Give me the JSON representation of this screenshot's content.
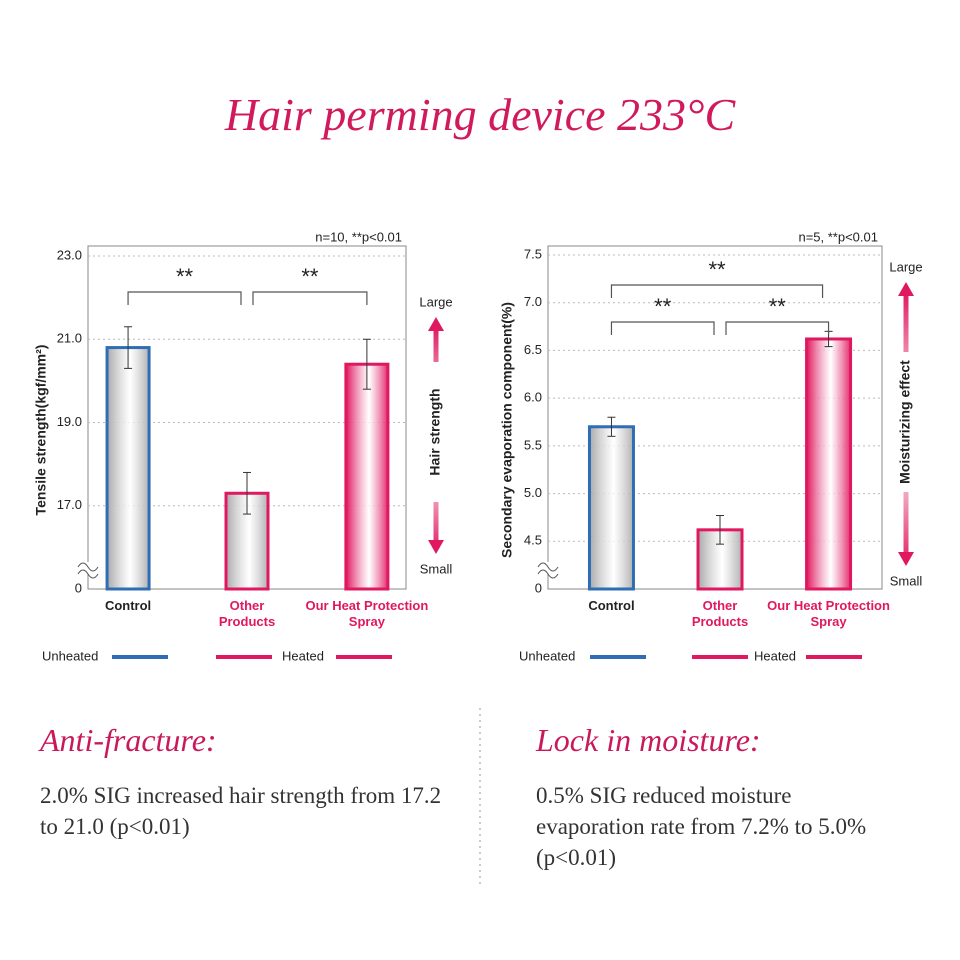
{
  "title": "Hair perming device 233°C",
  "chart_data": [
    {
      "type": "bar",
      "note": "n=10, **p<0.01",
      "y_label": "Tensile strength(kgf/mm²)",
      "categories": [
        "Control",
        "Other Products",
        "Our Heat Protection Spray"
      ],
      "category_colors": [
        "#222222",
        "#e0185f",
        "#e0185f"
      ],
      "values": [
        20.8,
        17.3,
        20.4
      ],
      "errors": [
        0.5,
        0.5,
        0.6
      ],
      "bar_border_colors": [
        "#2f6db5",
        "#e0185f",
        "#e0185f"
      ],
      "bar_fill_colors": [
        "#a9a9a9",
        "#a9a9a9",
        "#e0185f"
      ],
      "ylim": [
        15,
        23
      ],
      "yticks": [
        0,
        {
          "value": 17,
          "label": "17.0"
        },
        {
          "value": 19,
          "label": "19.0"
        },
        {
          "value": 21,
          "label": "21.0"
        },
        {
          "value": 23,
          "label": "23.0"
        }
      ],
      "axis_break": true,
      "grid": true,
      "annotations": [
        {
          "text": "**",
          "between": [
            0,
            1
          ]
        },
        {
          "text": "**",
          "between": [
            1,
            2
          ]
        }
      ],
      "arrow": {
        "top": "Large",
        "label": "Hair strength",
        "bottom": "Small"
      },
      "legend": [
        {
          "name": "Unheated",
          "color": "#2f6db5"
        },
        {
          "name": "Heated",
          "color": "#e0185f"
        }
      ]
    },
    {
      "type": "bar",
      "note": "n=5, **p<0.01",
      "y_label": "Secondary evaporation component(%)",
      "categories": [
        "Control",
        "Other Products",
        "Our Heat Protection Spray"
      ],
      "category_colors": [
        "#222222",
        "#e0185f",
        "#e0185f"
      ],
      "values": [
        5.7,
        4.62,
        6.62
      ],
      "errors": [
        0.1,
        0.15,
        0.08
      ],
      "bar_border_colors": [
        "#2f6db5",
        "#e0185f",
        "#e0185f"
      ],
      "bar_fill_colors": [
        "#a9a9a9",
        "#a9a9a9",
        "#e0185f"
      ],
      "ylim": [
        4.0,
        7.5
      ],
      "yticks": [
        0,
        4.5,
        {
          "value": 5,
          "label": "5.0"
        },
        5.5,
        {
          "value": 6,
          "label": "6.0"
        },
        6.5,
        {
          "value": 7,
          "label": "7.0"
        },
        7.5
      ],
      "axis_break": true,
      "grid": true,
      "annotations": [
        {
          "text": "**",
          "between": [
            0,
            2
          ]
        },
        {
          "text": "**",
          "between": [
            0,
            1
          ]
        },
        {
          "text": "**",
          "between": [
            1,
            2
          ]
        }
      ],
      "arrow": {
        "top": "Large",
        "label": "Moisturizing effect",
        "bottom": "Small"
      },
      "legend": [
        {
          "name": "Unheated",
          "color": "#2f6db5"
        },
        {
          "name": "Heated",
          "color": "#e0185f"
        }
      ]
    }
  ],
  "sections": [
    {
      "heading": "Anti-fracture:",
      "text": "2.0% SIG increased hair strength from 17.2 to 21.0 (p<0.01)"
    },
    {
      "heading": "Lock in moisture:",
      "text": "0.5% SIG reduced moisture evaporation rate from 7.2% to 5.0% (p<0.01)"
    }
  ]
}
